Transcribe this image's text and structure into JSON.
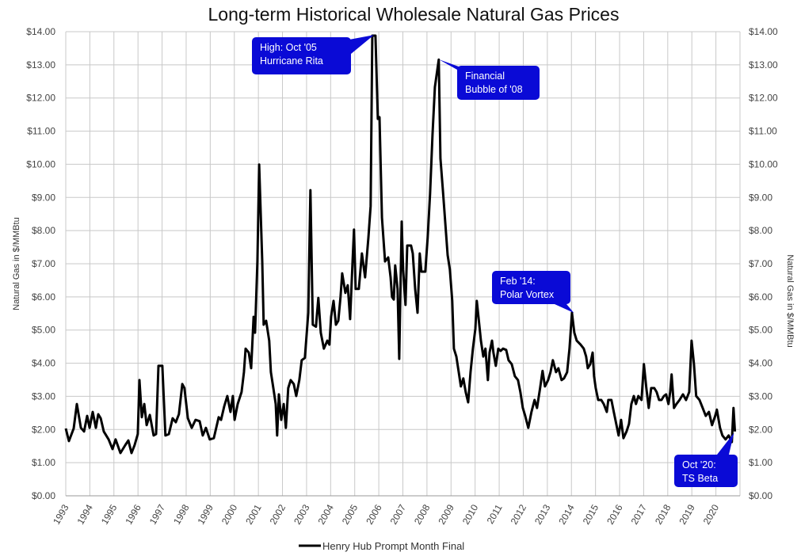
{
  "chart_data": {
    "type": "line",
    "title": "Long-term Historical Wholesale Natural Gas Prices",
    "ylabel": "Natural Gas in $/MMBtu",
    "ylabel_right": "Natural Gas in $/MMBtu",
    "xlabel": "",
    "xlim": [
      1993,
      2021
    ],
    "ylim": [
      0,
      14
    ],
    "grid": true,
    "legend_position": "bottom",
    "x_ticks": [
      "1993",
      "1994",
      "1995",
      "1996",
      "1997",
      "1998",
      "1999",
      "2000",
      "2001",
      "2002",
      "2003",
      "2004",
      "2005",
      "2006",
      "2007",
      "2008",
      "2009",
      "2010",
      "2011",
      "2012",
      "2013",
      "2014",
      "2015",
      "2016",
      "2017",
      "2018",
      "2019",
      "2020"
    ],
    "y_ticks": [
      "$0.00",
      "$1.00",
      "$2.00",
      "$3.00",
      "$4.00",
      "$5.00",
      "$6.00",
      "$7.00",
      "$8.00",
      "$9.00",
      "$10.00",
      "$11.00",
      "$12.00",
      "$13.00",
      "$14.00"
    ],
    "line_color": "#000000",
    "callout_color": "#0a0ad6",
    "series": [
      {
        "name": "Henry Hub Prompt Month Final",
        "points": [
          [
            1993.0,
            2.03
          ],
          [
            1993.13,
            1.65
          ],
          [
            1993.33,
            2.03
          ],
          [
            1993.46,
            2.77
          ],
          [
            1993.63,
            2.05
          ],
          [
            1993.76,
            1.94
          ],
          [
            1993.89,
            2.41
          ],
          [
            1993.99,
            2.05
          ],
          [
            1994.12,
            2.53
          ],
          [
            1994.25,
            2.05
          ],
          [
            1994.35,
            2.46
          ],
          [
            1994.45,
            2.34
          ],
          [
            1994.58,
            1.94
          ],
          [
            1994.78,
            1.7
          ],
          [
            1994.94,
            1.41
          ],
          [
            1995.07,
            1.7
          ],
          [
            1995.27,
            1.29
          ],
          [
            1995.47,
            1.53
          ],
          [
            1995.6,
            1.67
          ],
          [
            1995.73,
            1.29
          ],
          [
            1995.86,
            1.53
          ],
          [
            1995.99,
            1.86
          ],
          [
            1996.06,
            3.49
          ],
          [
            1996.16,
            2.37
          ],
          [
            1996.26,
            2.77
          ],
          [
            1996.36,
            2.13
          ],
          [
            1996.49,
            2.44
          ],
          [
            1996.65,
            1.82
          ],
          [
            1996.75,
            1.86
          ],
          [
            1996.85,
            3.92
          ],
          [
            1997.01,
            3.92
          ],
          [
            1997.14,
            1.82
          ],
          [
            1997.28,
            1.86
          ],
          [
            1997.44,
            2.34
          ],
          [
            1997.57,
            2.22
          ],
          [
            1997.7,
            2.46
          ],
          [
            1997.84,
            3.37
          ],
          [
            1997.93,
            3.25
          ],
          [
            1998.07,
            2.34
          ],
          [
            1998.23,
            2.05
          ],
          [
            1998.39,
            2.29
          ],
          [
            1998.56,
            2.25
          ],
          [
            1998.69,
            1.82
          ],
          [
            1998.82,
            2.05
          ],
          [
            1998.98,
            1.7
          ],
          [
            1999.15,
            1.74
          ],
          [
            1999.35,
            2.37
          ],
          [
            1999.45,
            2.29
          ],
          [
            1999.58,
            2.7
          ],
          [
            1999.71,
            3.01
          ],
          [
            1999.84,
            2.53
          ],
          [
            1999.94,
            3.01
          ],
          [
            2000.01,
            2.29
          ],
          [
            2000.14,
            2.77
          ],
          [
            2000.3,
            3.13
          ],
          [
            2000.4,
            3.73
          ],
          [
            2000.47,
            4.44
          ],
          [
            2000.6,
            4.32
          ],
          [
            2000.7,
            3.85
          ],
          [
            2000.8,
            5.4
          ],
          [
            2000.86,
            4.92
          ],
          [
            2000.96,
            7.07
          ],
          [
            2001.03,
            9.99
          ],
          [
            2001.16,
            7.07
          ],
          [
            2001.22,
            5.16
          ],
          [
            2001.32,
            5.28
          ],
          [
            2001.45,
            4.68
          ],
          [
            2001.52,
            3.73
          ],
          [
            2001.62,
            3.25
          ],
          [
            2001.72,
            2.77
          ],
          [
            2001.78,
            1.82
          ],
          [
            2001.85,
            3.06
          ],
          [
            2001.95,
            2.29
          ],
          [
            2002.05,
            2.77
          ],
          [
            2002.14,
            2.05
          ],
          [
            2002.24,
            3.25
          ],
          [
            2002.34,
            3.49
          ],
          [
            2002.47,
            3.37
          ],
          [
            2002.57,
            3.01
          ],
          [
            2002.7,
            3.49
          ],
          [
            2002.8,
            4.09
          ],
          [
            2002.93,
            4.16
          ],
          [
            2003.07,
            5.52
          ],
          [
            2003.16,
            9.22
          ],
          [
            2003.26,
            5.16
          ],
          [
            2003.39,
            5.1
          ],
          [
            2003.49,
            5.97
          ],
          [
            2003.59,
            4.92
          ],
          [
            2003.72,
            4.44
          ],
          [
            2003.86,
            4.68
          ],
          [
            2003.95,
            4.56
          ],
          [
            2004.02,
            5.4
          ],
          [
            2004.12,
            5.88
          ],
          [
            2004.22,
            5.16
          ],
          [
            2004.32,
            5.28
          ],
          [
            2004.41,
            6.0
          ],
          [
            2004.48,
            6.71
          ],
          [
            2004.61,
            6.12
          ],
          [
            2004.71,
            6.35
          ],
          [
            2004.81,
            5.33
          ],
          [
            2004.91,
            7.07
          ],
          [
            2004.97,
            8.03
          ],
          [
            2005.04,
            6.24
          ],
          [
            2005.17,
            6.24
          ],
          [
            2005.3,
            7.31
          ],
          [
            2005.43,
            6.59
          ],
          [
            2005.57,
            7.79
          ],
          [
            2005.66,
            8.74
          ],
          [
            2005.73,
            13.88
          ],
          [
            2005.86,
            13.88
          ],
          [
            2005.96,
            11.37
          ],
          [
            2006.03,
            11.42
          ],
          [
            2006.13,
            8.39
          ],
          [
            2006.26,
            7.07
          ],
          [
            2006.39,
            7.19
          ],
          [
            2006.49,
            6.59
          ],
          [
            2006.55,
            6.0
          ],
          [
            2006.62,
            5.92
          ],
          [
            2006.68,
            6.95
          ],
          [
            2006.78,
            6.24
          ],
          [
            2006.85,
            4.13
          ],
          [
            2006.95,
            8.27
          ],
          [
            2007.01,
            6.83
          ],
          [
            2007.11,
            5.76
          ],
          [
            2007.18,
            7.55
          ],
          [
            2007.34,
            7.55
          ],
          [
            2007.41,
            7.31
          ],
          [
            2007.51,
            6.24
          ],
          [
            2007.61,
            5.52
          ],
          [
            2007.7,
            7.31
          ],
          [
            2007.77,
            6.76
          ],
          [
            2007.93,
            6.76
          ],
          [
            2008.03,
            7.79
          ],
          [
            2008.13,
            9.1
          ],
          [
            2008.23,
            10.89
          ],
          [
            2008.33,
            12.33
          ],
          [
            2008.49,
            13.16
          ],
          [
            2008.56,
            10.18
          ],
          [
            2008.66,
            9.22
          ],
          [
            2008.86,
            7.26
          ],
          [
            2008.95,
            6.83
          ],
          [
            2009.05,
            5.88
          ],
          [
            2009.12,
            4.44
          ],
          [
            2009.22,
            4.2
          ],
          [
            2009.32,
            3.73
          ],
          [
            2009.41,
            3.3
          ],
          [
            2009.51,
            3.54
          ],
          [
            2009.61,
            3.13
          ],
          [
            2009.71,
            2.82
          ],
          [
            2009.81,
            3.73
          ],
          [
            2009.91,
            4.44
          ],
          [
            2010.01,
            5.04
          ],
          [
            2010.07,
            5.88
          ],
          [
            2010.14,
            5.4
          ],
          [
            2010.24,
            4.68
          ],
          [
            2010.34,
            4.2
          ],
          [
            2010.43,
            4.44
          ],
          [
            2010.53,
            3.49
          ],
          [
            2010.6,
            4.32
          ],
          [
            2010.7,
            4.68
          ],
          [
            2010.76,
            4.32
          ],
          [
            2010.86,
            3.92
          ],
          [
            2010.96,
            4.44
          ],
          [
            2011.06,
            4.37
          ],
          [
            2011.16,
            4.44
          ],
          [
            2011.29,
            4.4
          ],
          [
            2011.39,
            4.09
          ],
          [
            2011.52,
            3.97
          ],
          [
            2011.65,
            3.61
          ],
          [
            2011.78,
            3.49
          ],
          [
            2011.88,
            3.13
          ],
          [
            2011.98,
            2.65
          ],
          [
            2012.08,
            2.41
          ],
          [
            2012.21,
            2.05
          ],
          [
            2012.34,
            2.53
          ],
          [
            2012.47,
            2.89
          ],
          [
            2012.57,
            2.65
          ],
          [
            2012.7,
            3.25
          ],
          [
            2012.8,
            3.77
          ],
          [
            2012.9,
            3.3
          ],
          [
            2013.03,
            3.49
          ],
          [
            2013.13,
            3.73
          ],
          [
            2013.23,
            4.09
          ],
          [
            2013.36,
            3.73
          ],
          [
            2013.46,
            3.85
          ],
          [
            2013.59,
            3.49
          ],
          [
            2013.69,
            3.54
          ],
          [
            2013.82,
            3.73
          ],
          [
            2013.92,
            4.44
          ],
          [
            2014.02,
            5.52
          ],
          [
            2014.12,
            4.92
          ],
          [
            2014.22,
            4.68
          ],
          [
            2014.38,
            4.56
          ],
          [
            2014.51,
            4.44
          ],
          [
            2014.61,
            4.2
          ],
          [
            2014.68,
            3.85
          ],
          [
            2014.78,
            3.97
          ],
          [
            2014.88,
            4.32
          ],
          [
            2014.94,
            3.61
          ],
          [
            2015.01,
            3.25
          ],
          [
            2015.11,
            2.89
          ],
          [
            2015.24,
            2.89
          ],
          [
            2015.34,
            2.77
          ],
          [
            2015.47,
            2.53
          ],
          [
            2015.53,
            2.89
          ],
          [
            2015.66,
            2.89
          ],
          [
            2015.76,
            2.53
          ],
          [
            2015.86,
            2.17
          ],
          [
            2015.96,
            1.82
          ],
          [
            2016.06,
            2.29
          ],
          [
            2016.16,
            1.74
          ],
          [
            2016.29,
            1.94
          ],
          [
            2016.39,
            2.17
          ],
          [
            2016.49,
            2.77
          ],
          [
            2016.59,
            3.01
          ],
          [
            2016.68,
            2.77
          ],
          [
            2016.78,
            3.01
          ],
          [
            2016.91,
            2.89
          ],
          [
            2017.01,
            3.97
          ],
          [
            2017.11,
            3.25
          ],
          [
            2017.21,
            2.65
          ],
          [
            2017.31,
            3.25
          ],
          [
            2017.44,
            3.25
          ],
          [
            2017.54,
            3.13
          ],
          [
            2017.64,
            2.89
          ],
          [
            2017.74,
            2.89
          ],
          [
            2017.84,
            3.01
          ],
          [
            2017.93,
            3.06
          ],
          [
            2018.03,
            2.77
          ],
          [
            2018.1,
            3.13
          ],
          [
            2018.16,
            3.66
          ],
          [
            2018.26,
            2.65
          ],
          [
            2018.36,
            2.77
          ],
          [
            2018.49,
            2.89
          ],
          [
            2018.63,
            3.06
          ],
          [
            2018.76,
            2.89
          ],
          [
            2018.89,
            3.13
          ],
          [
            2018.99,
            4.68
          ],
          [
            2019.09,
            3.97
          ],
          [
            2019.18,
            3.01
          ],
          [
            2019.32,
            2.89
          ],
          [
            2019.45,
            2.65
          ],
          [
            2019.58,
            2.41
          ],
          [
            2019.71,
            2.53
          ],
          [
            2019.84,
            2.13
          ],
          [
            2019.97,
            2.41
          ],
          [
            2020.04,
            2.6
          ],
          [
            2020.17,
            2.05
          ],
          [
            2020.27,
            1.82
          ],
          [
            2020.4,
            1.7
          ],
          [
            2020.53,
            1.82
          ],
          [
            2020.66,
            1.62
          ],
          [
            2020.73,
            2.65
          ],
          [
            2020.79,
            1.94
          ]
        ]
      }
    ],
    "annotations": [
      {
        "lines": [
          "High: Oct '05",
          "Hurricane Rita"
        ],
        "x": 2005.8,
        "y": 13.9
      },
      {
        "lines": [
          "Financial",
          "Bubble of '08"
        ],
        "x": 2008.5,
        "y": 13.16
      },
      {
        "lines": [
          "Feb '14:",
          "Polar Vortex"
        ],
        "x": 2014.1,
        "y": 5.52
      },
      {
        "lines": [
          "Oct '20:",
          "TS Beta"
        ],
        "x": 2020.75,
        "y": 1.9
      }
    ]
  }
}
